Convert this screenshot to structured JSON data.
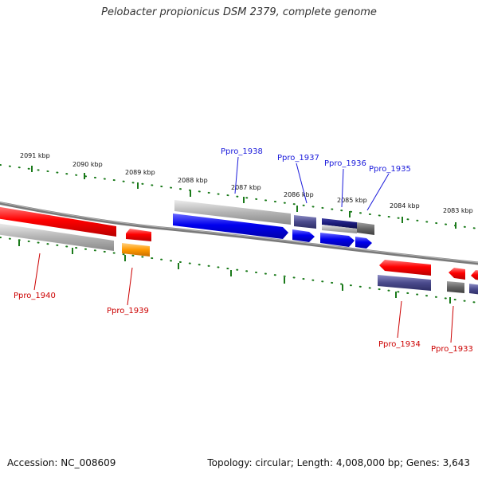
{
  "title": "Pelobacter propionicus DSM 2379, complete genome",
  "footer": {
    "accession": "Accession: NC_008609",
    "summary": "Topology: circular; Length: 4,008,000 bp; Genes: 3,643"
  },
  "scale_labels": [
    "2091 kbp",
    "2090 kbp",
    "2089 kbp",
    "2088 kbp",
    "2087 kbp",
    "2086 kbp",
    "2085 kbp",
    "2084 kbp",
    "2083 kbp"
  ],
  "gene_labels": {
    "top": [
      "Ppro_1938",
      "Ppro_1937",
      "Ppro_1936",
      "Ppro_1935"
    ],
    "bottom": [
      "Ppro_1940",
      "Ppro_1939",
      "Ppro_1934",
      "Ppro_1933"
    ]
  },
  "colors": {
    "backbone": "#777777",
    "scale_tick": "#1a7a1a",
    "label_top": "#1a1adb",
    "label_bottom": "#cc0000",
    "red": "#ff0000",
    "blue": "#0000ee",
    "slate": "#4a4a8c",
    "navy": "#1a1a7a",
    "orange": "#ff9900",
    "gray": "#b4b4b4",
    "darkgray": "#666666"
  }
}
